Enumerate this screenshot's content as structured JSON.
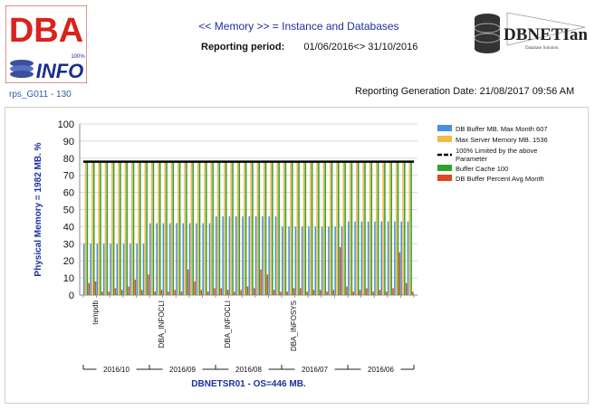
{
  "header": {
    "logo_left_text_top": "DBA",
    "logo_left_text_bottom": "INFO",
    "logo_left_badge": "100%",
    "logo_right_text": "DBNETIan",
    "logo_right_sub": "Database Solution",
    "title": "<< Memory >> = Instance and Databases",
    "period_label": "Reporting period:",
    "period_value": "01/06/2016<> 31/10/2016",
    "report_id": "rps_G011 - 130",
    "generation_date": "Reporting Generation Date: 21/08/2017 09:56 AM"
  },
  "colors": {
    "buffer": "#4a8ee0",
    "max_server": "#f2b84a",
    "limit_line": "#000000",
    "cache": "#2fa12c",
    "percent": "#e0461e",
    "title": "#1e2fa0",
    "grid": "#d8d8d8"
  },
  "chart_data": {
    "type": "bar",
    "ylabel": "Physical Memory = 1982 MB. %",
    "xlabel": "DBNETSR01 - OS=446 MB.",
    "ylim": [
      0,
      100
    ],
    "yticks": [
      0,
      10,
      20,
      30,
      40,
      50,
      60,
      70,
      80,
      90,
      100
    ],
    "grid": true,
    "legend_position": "right",
    "legend": [
      "DB Buffer MB. Max Month 607",
      "Max Server Memory MB. 1536",
      "100% Limited by the above Parameter",
      "Buffer Cache 100",
      "DB Buffer Percent Avg Month"
    ],
    "limit_line_value": 78,
    "months": [
      "2016/10",
      "2016/09",
      "2016/08",
      "2016/07",
      "2016/06"
    ],
    "database_labels": [
      "tempdb",
      "DBA_INFOCLI",
      "DBA_INFOCLI",
      "DBA_INFOSYS"
    ],
    "groups": [
      {
        "month": "2016/10",
        "buffer": [
          30,
          30,
          30,
          30,
          30,
          30,
          30,
          30,
          30,
          30
        ],
        "max_server": [
          78,
          78,
          78,
          78,
          78,
          78,
          78,
          78,
          78,
          78
        ],
        "cache": [
          78,
          78,
          78,
          78,
          78,
          78,
          78,
          78,
          78,
          78
        ],
        "percent": [
          7,
          8,
          2,
          2,
          4,
          3,
          5,
          9,
          3,
          12
        ]
      },
      {
        "month": "2016/09",
        "buffer": [
          42,
          42,
          42,
          42,
          42,
          42,
          42,
          42,
          42,
          42
        ],
        "max_server": [
          78,
          78,
          78,
          78,
          78,
          78,
          78,
          78,
          78,
          78
        ],
        "cache": [
          78,
          78,
          78,
          78,
          78,
          78,
          78,
          78,
          78,
          78
        ],
        "percent": [
          2,
          3,
          2,
          3,
          2,
          15,
          8,
          3,
          2,
          4
        ]
      },
      {
        "month": "2016/08",
        "buffer": [
          46,
          46,
          46,
          46,
          46,
          46,
          46,
          46,
          46,
          46
        ],
        "max_server": [
          78,
          78,
          78,
          78,
          78,
          78,
          78,
          78,
          78,
          78
        ],
        "cache": [
          78,
          78,
          78,
          78,
          78,
          78,
          78,
          78,
          78,
          78
        ],
        "percent": [
          4,
          3,
          2,
          3,
          5,
          4,
          15,
          12,
          3,
          2
        ]
      },
      {
        "month": "2016/07",
        "buffer": [
          40,
          40,
          40,
          40,
          40,
          40,
          40,
          40,
          40,
          40
        ],
        "max_server": [
          78,
          78,
          78,
          78,
          78,
          78,
          78,
          78,
          78,
          78
        ],
        "cache": [
          78,
          78,
          78,
          78,
          78,
          78,
          78,
          78,
          78,
          78
        ],
        "percent": [
          2,
          4,
          4,
          2,
          3,
          3,
          2,
          3,
          28,
          5
        ]
      },
      {
        "month": "2016/06",
        "buffer": [
          43,
          43,
          43,
          43,
          43,
          43,
          43,
          43,
          43,
          43
        ],
        "max_server": [
          78,
          78,
          78,
          78,
          78,
          78,
          78,
          78,
          78,
          78
        ],
        "cache": [
          78,
          78,
          78,
          78,
          78,
          78,
          78,
          78,
          78,
          78
        ],
        "percent": [
          2,
          3,
          4,
          2,
          3,
          2,
          4,
          25,
          7,
          2
        ]
      }
    ]
  }
}
